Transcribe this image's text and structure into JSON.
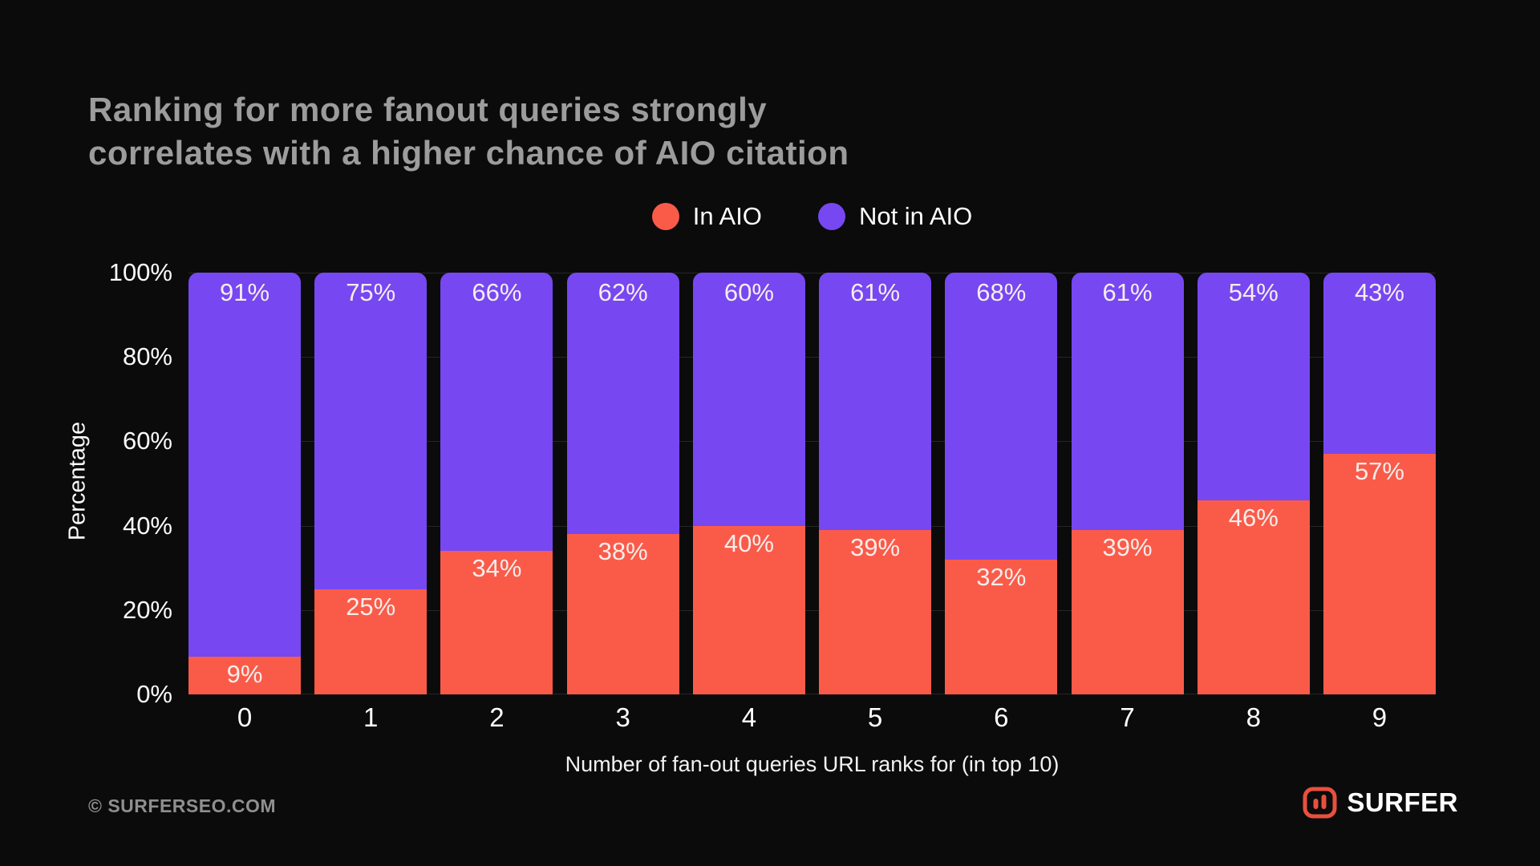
{
  "title": {
    "line1": "Ranking for more fanout queries strongly",
    "line2": "correlates with a higher chance of AIO citation"
  },
  "legend": [
    {
      "label": "In AIO",
      "color": "#fa5b49"
    },
    {
      "label": "Not in AIO",
      "color": "#7747f2"
    }
  ],
  "chart_data": {
    "type": "bar",
    "stacked": true,
    "title": "Ranking for more fanout queries strongly correlates with a higher chance of AIO citation",
    "categories": [
      "0",
      "1",
      "2",
      "3",
      "4",
      "5",
      "6",
      "7",
      "8",
      "9"
    ],
    "series": [
      {
        "name": "In AIO",
        "color": "#fa5b49",
        "values": [
          9,
          25,
          34,
          38,
          40,
          39,
          32,
          39,
          46,
          57
        ]
      },
      {
        "name": "Not in AIO",
        "color": "#7747f2",
        "values": [
          91,
          75,
          66,
          62,
          60,
          61,
          68,
          61,
          54,
          43
        ]
      }
    ],
    "value_label_format": "{value}%",
    "xlabel": "Number of fan-out queries URL ranks for (in top 10)",
    "ylabel": "Percentage",
    "ylim": [
      0,
      100
    ],
    "yticks": [
      "0%",
      "20%",
      "40%",
      "60%",
      "80%",
      "100%"
    ],
    "grid": "horizontal",
    "legend_position": "top"
  },
  "footer": {
    "copyright": "© SURFERSEO.COM",
    "brand": "SURFER"
  },
  "colors": {
    "background": "#0b0b0b",
    "title_text": "#9c9c9c",
    "axis_text": "#fafafa",
    "bar_label_text": "#f5edeb",
    "gridline": "#262626",
    "brand_icon": "#e8503e"
  },
  "icons": {
    "brand_icon": "surfer-logo-icon"
  }
}
